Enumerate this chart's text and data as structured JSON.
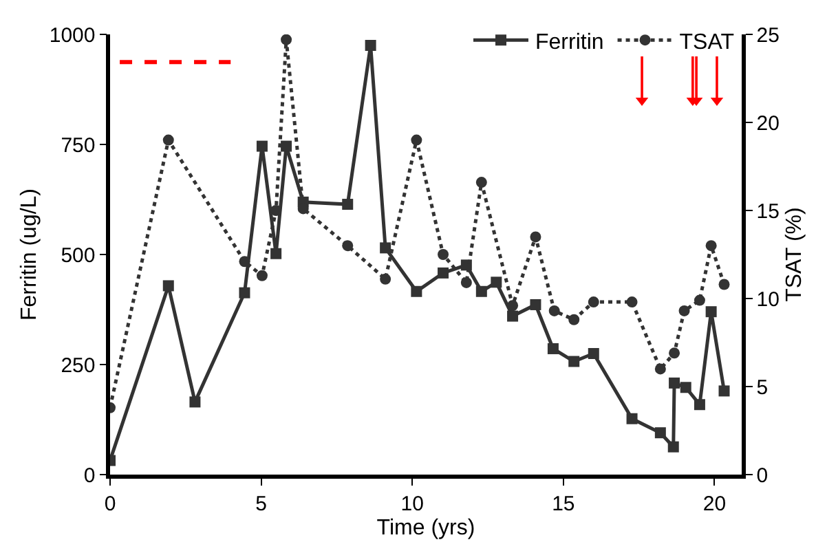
{
  "chart_data": {
    "type": "line",
    "xlabel": "Time (yrs)",
    "ylabel": "Ferritin (ug/L)",
    "y2label": "TSAT (%)",
    "xlim": [
      0,
      20.9
    ],
    "xticks": [
      0,
      5,
      10,
      15,
      20
    ],
    "ylim": [
      0,
      1000
    ],
    "yticks": [
      0,
      250,
      500,
      750,
      1000
    ],
    "y2lim": [
      0,
      25
    ],
    "y2ticks": [
      0,
      5,
      10,
      15,
      20,
      25
    ],
    "legend": "top right",
    "series": [
      {
        "name": "Ferritin",
        "color": "#333333",
        "marker": "square",
        "line_style": "solid",
        "x": [
          0,
          1.93,
          2.81,
          4.45,
          5.03,
          5.49,
          5.83,
          6.39,
          7.86,
          8.62,
          9.11,
          10.14,
          11.02,
          11.79,
          12.29,
          12.78,
          13.32,
          14.08,
          14.66,
          15.35,
          16.0,
          17.27,
          18.21,
          18.64,
          18.67,
          19.05,
          19.51,
          19.89,
          20.32
        ],
        "values": [
          32,
          429,
          165,
          413,
          746,
          502,
          746,
          619,
          614,
          975,
          515,
          416,
          458,
          476,
          416,
          437,
          360,
          386,
          286,
          257,
          275,
          127,
          95,
          63,
          208,
          198,
          159,
          370,
          190
        ]
      },
      {
        "name": "TSAT",
        "color": "#333333",
        "marker": "circle",
        "line_style": "dotted",
        "axis": "y2",
        "x": [
          0,
          1.93,
          4.45,
          5.03,
          5.49,
          5.83,
          6.39,
          7.86,
          9.11,
          10.14,
          11.02,
          11.79,
          12.29,
          13.32,
          14.08,
          14.7,
          15.35,
          16.0,
          17.27,
          18.21,
          18.67,
          19.0,
          19.51,
          19.89,
          20.32
        ],
        "values": [
          3.8,
          19.0,
          12.1,
          11.3,
          15.0,
          24.7,
          15.1,
          13.0,
          11.1,
          19.0,
          12.5,
          10.9,
          16.6,
          9.6,
          13.5,
          9.3,
          8.8,
          9.8,
          9.8,
          6.0,
          6.9,
          9.3,
          9.9,
          13.0,
          10.8
        ]
      },
      {
        "color": "#ff0000",
        "marker": "none",
        "line_style": "dashed",
        "x": [
          0.32,
          3.99
        ],
        "values": [
          937,
          937
        ]
      },
      {
        "type": "scatter",
        "color": "#ff0000",
        "marker": "triangle",
        "x": [
          17.6,
          19.28,
          19.4,
          20.08
        ],
        "values": [
          850,
          850,
          850,
          850
        ],
        "errors": [
          [
            850,
            950
          ],
          [
            850,
            950
          ],
          [
            850,
            950
          ],
          [
            850,
            950
          ]
        ]
      }
    ]
  }
}
